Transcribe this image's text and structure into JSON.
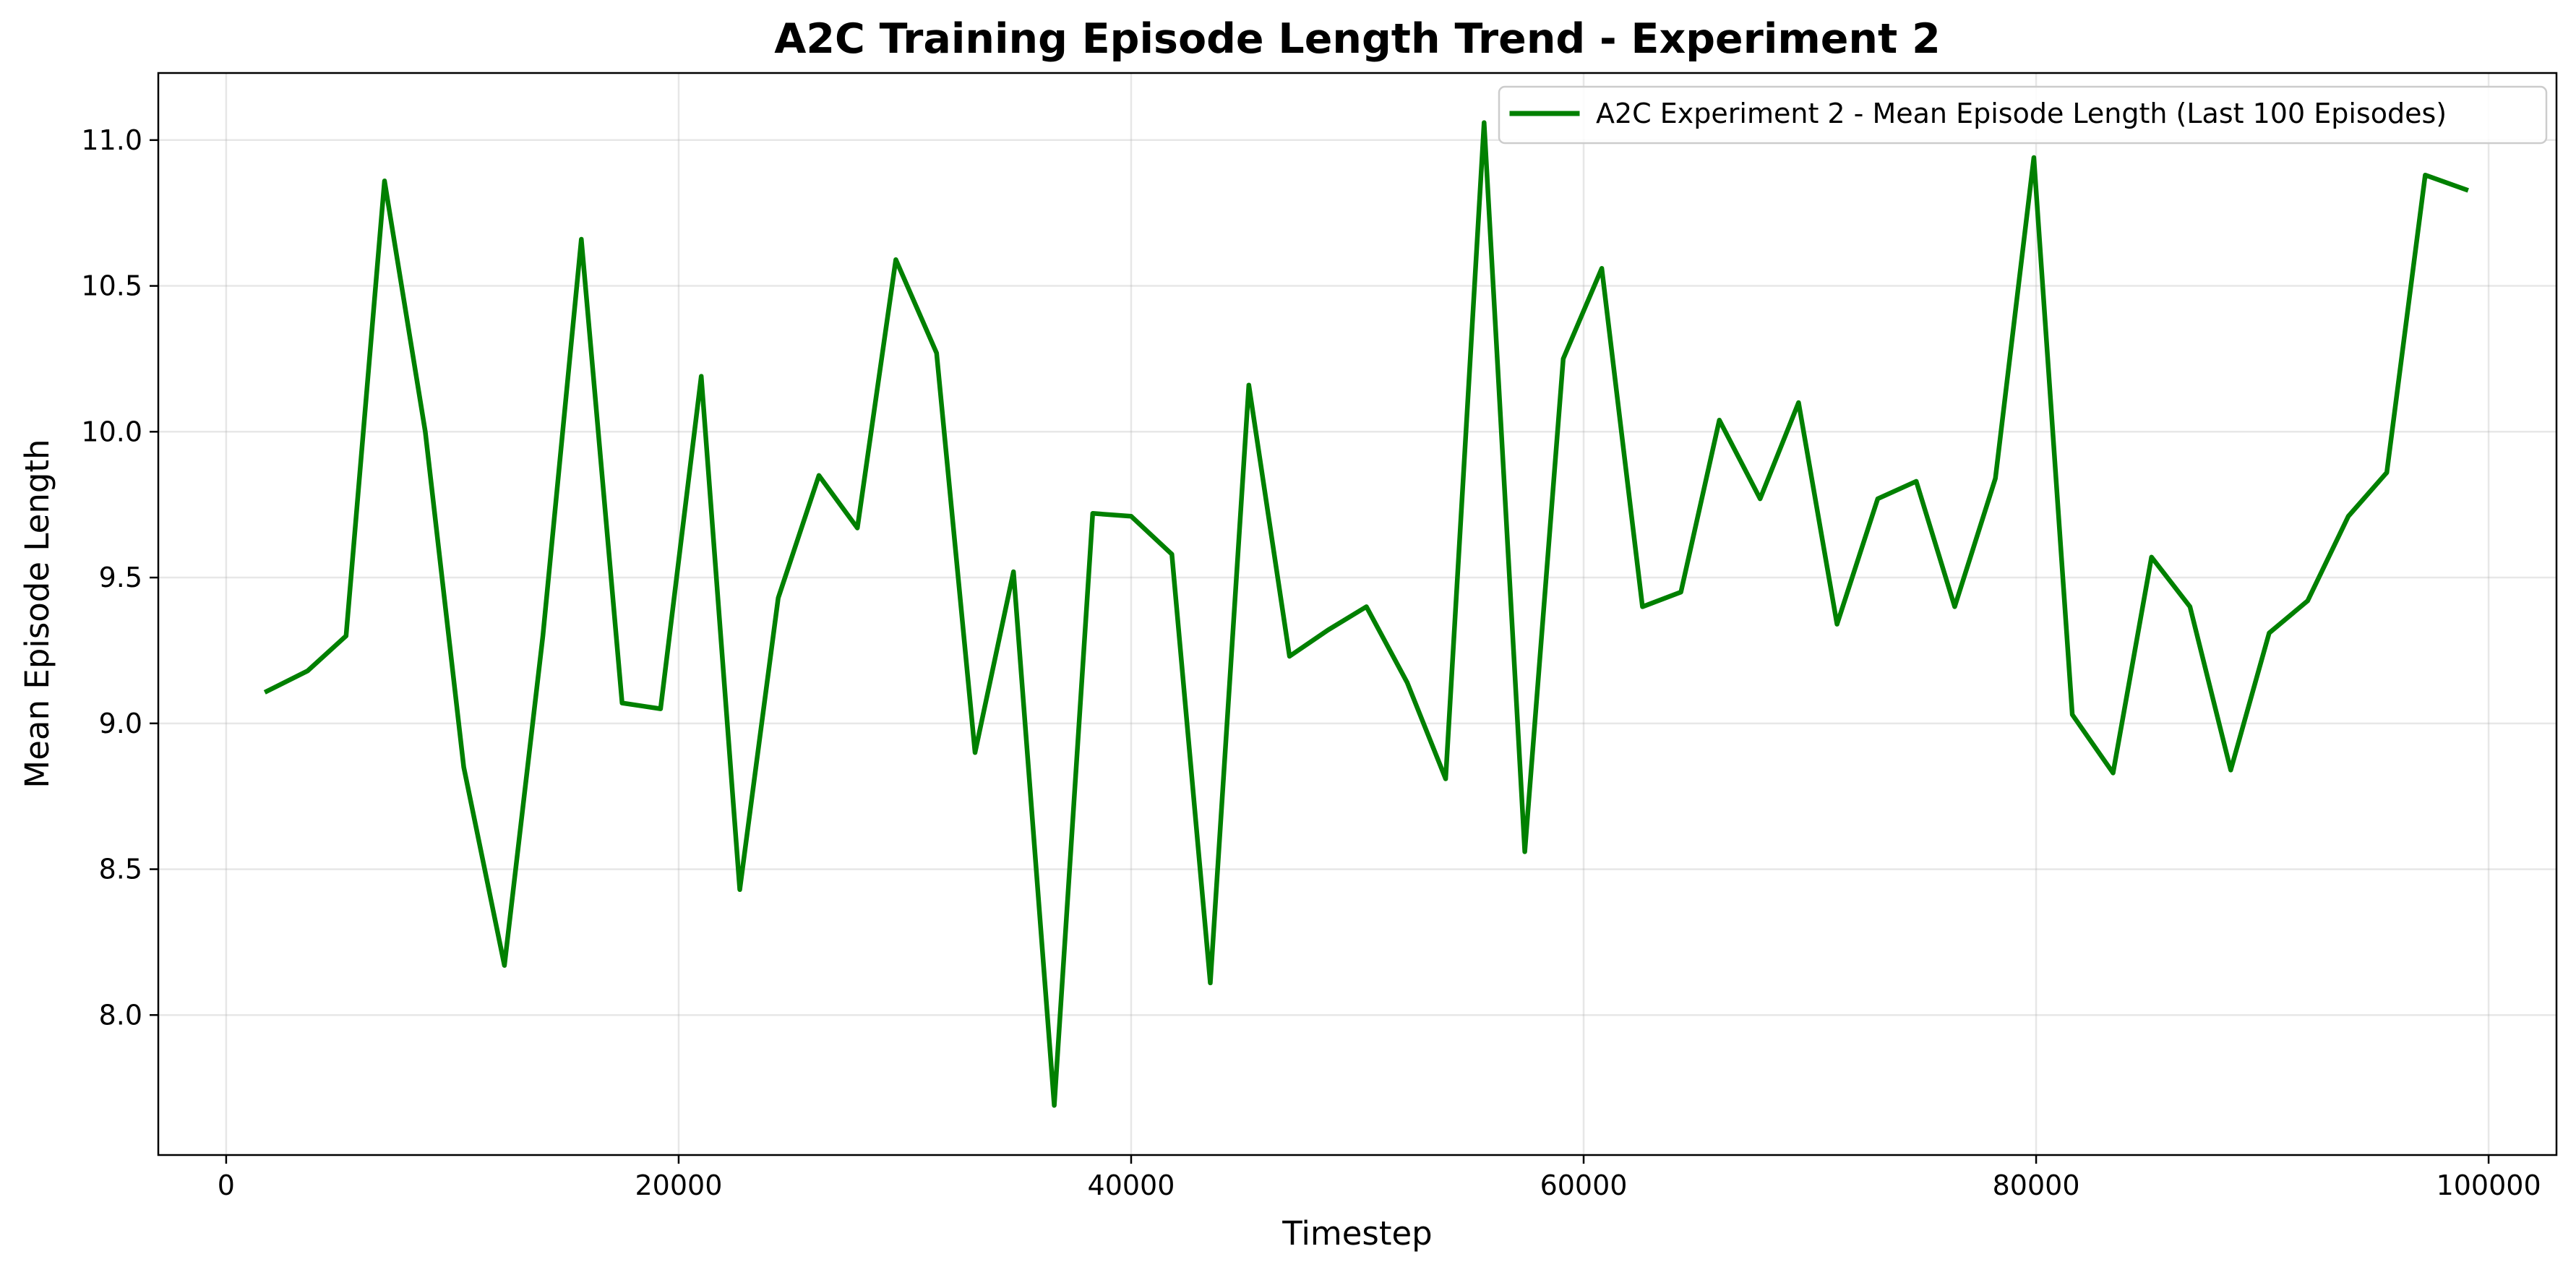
{
  "chart_data": {
    "type": "line",
    "title": "A2C Training Episode Length Trend - Experiment 2",
    "xlabel": "Timestep",
    "ylabel": "Mean Episode Length",
    "xlim": [
      -3000,
      103000
    ],
    "ylim": [
      7.52,
      11.23
    ],
    "xticks": [
      0,
      20000,
      40000,
      60000,
      80000,
      100000
    ],
    "xtick_labels": [
      "0",
      "20000",
      "40000",
      "60000",
      "80000",
      "100000"
    ],
    "yticks": [
      8.0,
      8.5,
      9.0,
      9.5,
      10.0,
      10.5,
      11.0
    ],
    "ytick_labels": [
      "8.0",
      "8.5",
      "9.0",
      "9.5",
      "10.0",
      "10.5",
      "11.0"
    ],
    "grid": true,
    "legend_position": "top-right",
    "series": [
      {
        "name": "A2C Experiment 2 - Mean Episode Length (Last 100 Episodes)",
        "color": "#008000",
        "x": [
          1800,
          3600,
          5300,
          7000,
          8800,
          10500,
          12300,
          14000,
          15700,
          17500,
          19200,
          21000,
          22700,
          24400,
          26200,
          27900,
          29600,
          31400,
          33100,
          34800,
          36600,
          38300,
          40000,
          41800,
          43500,
          45200,
          47000,
          48700,
          50400,
          52200,
          53900,
          55600,
          57400,
          59100,
          60800,
          62600,
          64300,
          66000,
          67800,
          69500,
          71200,
          73000,
          74700,
          76400,
          78200,
          79900,
          81600,
          83400,
          85100,
          86800,
          88600,
          90300,
          92000,
          93800,
          95500,
          97200,
          99000
        ],
        "y": [
          9.11,
          9.18,
          9.3,
          10.86,
          10.0,
          8.85,
          8.17,
          9.3,
          10.66,
          9.07,
          9.05,
          10.19,
          8.43,
          9.43,
          9.85,
          9.67,
          10.59,
          10.27,
          8.9,
          9.52,
          7.69,
          9.72,
          9.71,
          9.58,
          8.11,
          10.16,
          9.23,
          9.32,
          9.4,
          9.14,
          8.81,
          11.06,
          8.56,
          10.25,
          10.56,
          9.4,
          9.45,
          10.04,
          9.77,
          10.1,
          9.34,
          9.77,
          9.83,
          9.4,
          9.84,
          10.94,
          9.03,
          8.83,
          9.57,
          9.4,
          8.84,
          9.31,
          9.42,
          9.71,
          9.86,
          10.88,
          10.83
        ]
      }
    ]
  }
}
